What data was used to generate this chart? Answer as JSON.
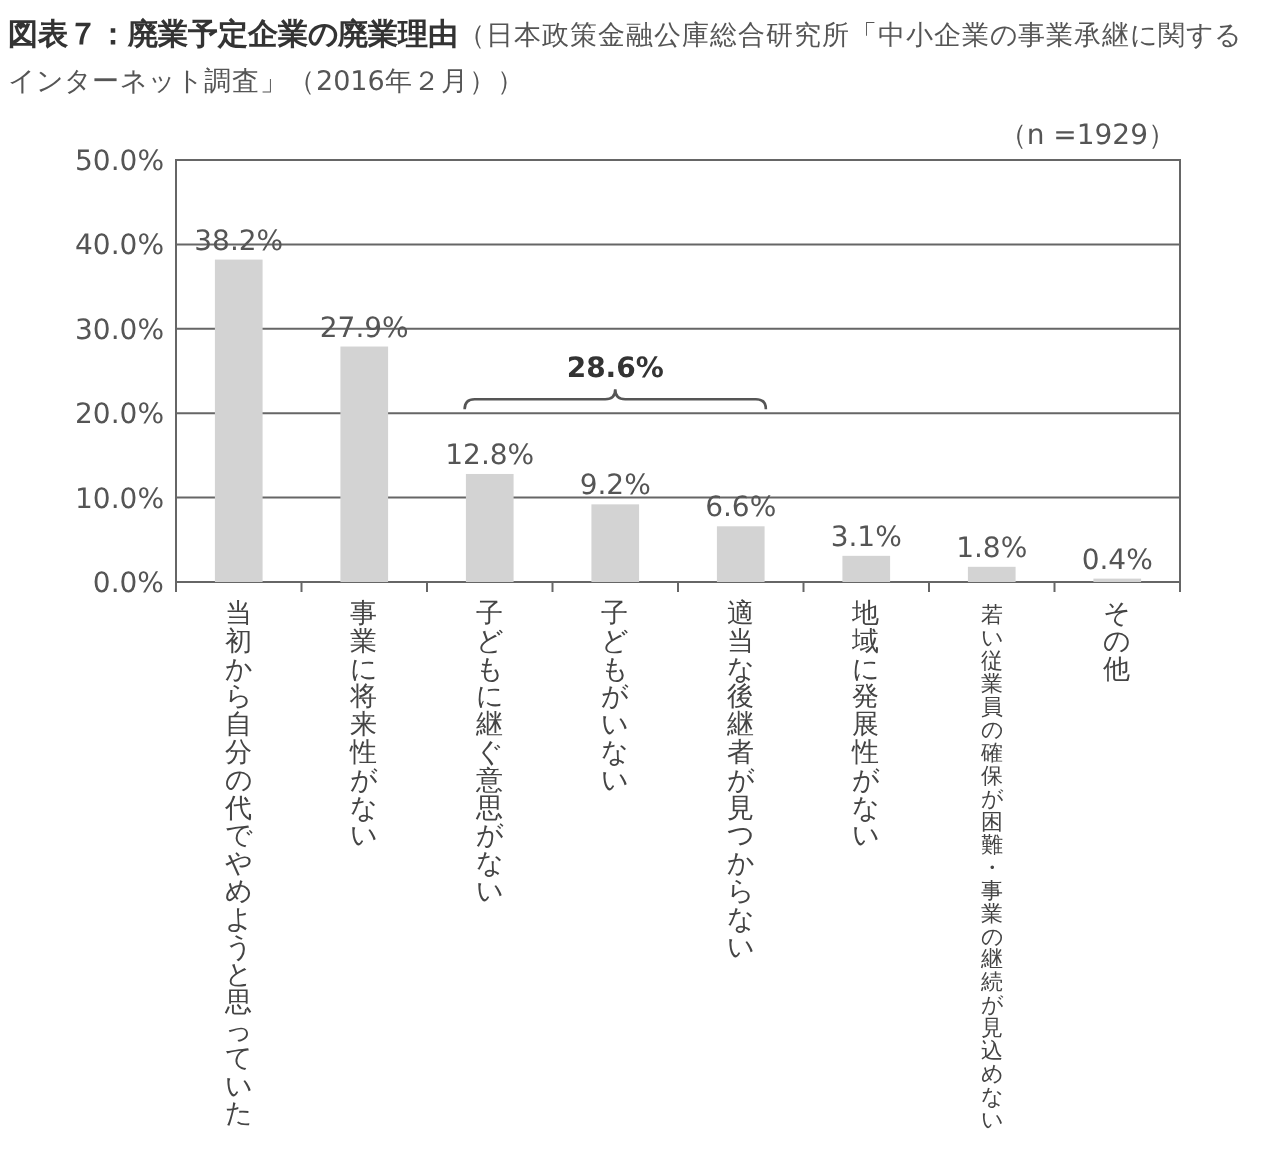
{
  "chart_data": {
    "type": "bar",
    "title": "図表７：廃業予定企業の廃業理由",
    "subtitle": "（日本政策金融公庫総合研究所「中小企業の事業承継に関するインターネット調査」（2016年２月））",
    "categories": [
      "当初から自分の代でやめようと思っていた",
      "事業に将来性がない",
      "子どもに継ぐ意思がない",
      "子どもがいない",
      "適当な後継者が見つからない",
      "地域に発展性がない",
      "若い従業員の確保が困難・事業の継続が見込めない",
      "その他"
    ],
    "values": [
      38.2,
      27.9,
      12.8,
      9.2,
      6.6,
      3.1,
      1.8,
      0.4
    ],
    "color": "#d3d3d3",
    "ylim": [
      0,
      50
    ],
    "yticks": [
      {
        "value": 0,
        "label": "0.0%"
      },
      {
        "value": 10,
        "label": "10.0%"
      },
      {
        "value": 20,
        "label": "20.0%"
      },
      {
        "value": 30,
        "label": "30.0%"
      },
      {
        "value": 40,
        "label": "40.0%"
      },
      {
        "value": 50,
        "label": "50.0%"
      }
    ],
    "value_labels": [
      "38.2%",
      "27.9%",
      "12.8%",
      "9.2%",
      "6.6%",
      "3.1%",
      "1.8%",
      "0.4%"
    ],
    "grid": "y",
    "annotations": [
      "（n =1929）",
      "28.6%"
    ]
  }
}
